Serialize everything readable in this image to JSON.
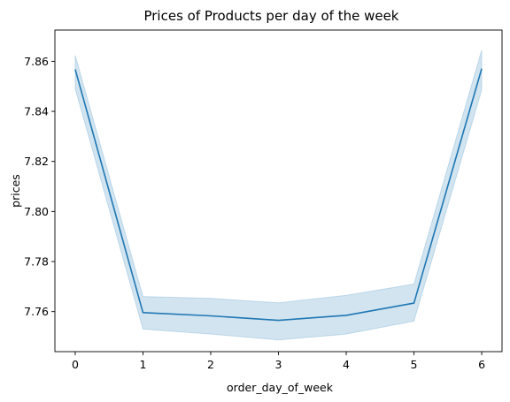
{
  "chart_data": {
    "type": "line",
    "title": "Prices of Products per day of the week",
    "xlabel": "order_day_of_week",
    "ylabel": "prices",
    "x": [
      0,
      1,
      2,
      3,
      4,
      5,
      6
    ],
    "xticks": [
      "0",
      "1",
      "2",
      "3",
      "4",
      "5",
      "6"
    ],
    "yticks": [
      "7.76",
      "7.78",
      "7.80",
      "7.82",
      "7.84",
      "7.86"
    ],
    "ytick_values": [
      7.76,
      7.78,
      7.8,
      7.82,
      7.84,
      7.86
    ],
    "xlim": [
      -0.3,
      6.3
    ],
    "ylim": [
      7.744,
      7.8725
    ],
    "grid": false,
    "series": [
      {
        "values": [
          7.8568,
          7.7596,
          7.7583,
          7.7565,
          7.7585,
          7.7634,
          7.8571
        ],
        "ci_lower": [
          7.849,
          7.753,
          7.751,
          7.7487,
          7.751,
          7.7562,
          7.8485
        ],
        "ci_upper": [
          7.8624,
          7.766,
          7.7653,
          7.7635,
          7.7665,
          7.771,
          7.8645
        ],
        "color": "#1f77b4"
      }
    ]
  }
}
